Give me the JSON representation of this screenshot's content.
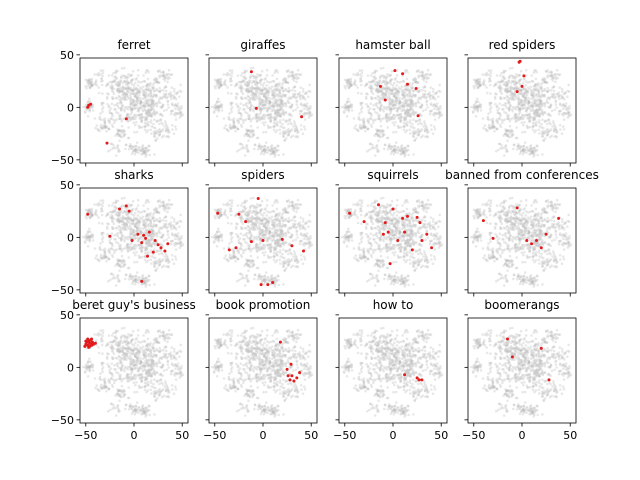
{
  "chart_data": {
    "type": "scatter",
    "layout": {
      "rows": 3,
      "cols": 4
    },
    "shared_axes": true,
    "xlim": [
      -56,
      56
    ],
    "ylim": [
      -53,
      47
    ],
    "xticks": [
      -50,
      0,
      50
    ],
    "yticks": [
      50,
      0,
      -50
    ],
    "xtick_labels": [
      "−50",
      "0",
      "50"
    ],
    "ytick_labels": [
      "50",
      "0",
      "−50"
    ],
    "background_color": "#bdbdbd",
    "highlight_color": "#e31a1c",
    "grid": false,
    "panels": [
      {
        "title": "ferret",
        "points": [
          [
            -47,
            2
          ],
          [
            -45,
            3
          ],
          [
            -28,
            -34
          ],
          [
            -8,
            -11
          ],
          [
            -48,
            0
          ]
        ]
      },
      {
        "title": "giraffes",
        "points": [
          [
            -12,
            34
          ],
          [
            -7,
            -1
          ],
          [
            40,
            -9
          ]
        ]
      },
      {
        "title": "hamster ball",
        "points": [
          [
            -13,
            20
          ],
          [
            -8,
            7
          ],
          [
            2,
            35
          ],
          [
            10,
            32
          ],
          [
            24,
            18
          ],
          [
            26,
            -8
          ],
          [
            15,
            22
          ]
        ]
      },
      {
        "title": "red spiders",
        "points": [
          [
            -3,
            43
          ],
          [
            -2,
            44
          ],
          [
            2,
            30
          ],
          [
            0,
            20
          ],
          [
            -5,
            15
          ]
        ]
      },
      {
        "title": "sharks",
        "points": [
          [
            -48,
            22
          ],
          [
            -25,
            1
          ],
          [
            -15,
            27
          ],
          [
            -8,
            30
          ],
          [
            -5,
            25
          ],
          [
            -2,
            -3
          ],
          [
            4,
            3
          ],
          [
            8,
            -5
          ],
          [
            10,
            2
          ],
          [
            12,
            -1
          ],
          [
            14,
            -18
          ],
          [
            16,
            5
          ],
          [
            20,
            -14
          ],
          [
            25,
            -7
          ],
          [
            28,
            -10
          ],
          [
            32,
            -13
          ],
          [
            35,
            -6
          ],
          [
            8,
            -42
          ],
          [
            22,
            -3
          ]
        ]
      },
      {
        "title": "spiders",
        "points": [
          [
            -47,
            23
          ],
          [
            -35,
            -12
          ],
          [
            -28,
            -10
          ],
          [
            -25,
            22
          ],
          [
            -18,
            15
          ],
          [
            -12,
            -4
          ],
          [
            -5,
            37
          ],
          [
            5,
            -45
          ],
          [
            0,
            -3
          ],
          [
            10,
            -43
          ],
          [
            20,
            -2
          ],
          [
            30,
            -8
          ],
          [
            42,
            -13
          ],
          [
            -2,
            -45
          ]
        ]
      },
      {
        "title": "squirrels",
        "points": [
          [
            -45,
            23
          ],
          [
            -30,
            15
          ],
          [
            -15,
            31
          ],
          [
            -10,
            3
          ],
          [
            -8,
            14
          ],
          [
            -5,
            5
          ],
          [
            0,
            27
          ],
          [
            5,
            -3
          ],
          [
            10,
            18
          ],
          [
            12,
            5
          ],
          [
            15,
            20
          ],
          [
            20,
            -12
          ],
          [
            25,
            19
          ],
          [
            28,
            14
          ],
          [
            30,
            -3
          ],
          [
            35,
            3
          ],
          [
            40,
            -10
          ],
          [
            -3,
            -25
          ]
        ]
      },
      {
        "title": "banned from conferences",
        "points": [
          [
            -40,
            16
          ],
          [
            -30,
            -1
          ],
          [
            -5,
            28
          ],
          [
            5,
            -3
          ],
          [
            10,
            -6
          ],
          [
            15,
            -3
          ],
          [
            20,
            -10
          ],
          [
            25,
            3
          ],
          [
            38,
            18
          ]
        ]
      },
      {
        "title": "beret guy's business",
        "points": [
          [
            -50,
            22
          ],
          [
            -49,
            24
          ],
          [
            -48,
            21
          ],
          [
            -47,
            25
          ],
          [
            -46,
            23
          ],
          [
            -45,
            26
          ],
          [
            -44,
            21
          ],
          [
            -43,
            24
          ],
          [
            -48,
            27
          ],
          [
            -50,
            25
          ],
          [
            -46,
            20
          ],
          [
            -44,
            27
          ],
          [
            -42,
            22
          ],
          [
            -47,
            19
          ],
          [
            -45,
            23
          ],
          [
            -51,
            20
          ],
          [
            -40,
            23
          ]
        ]
      },
      {
        "title": "book promotion",
        "points": [
          [
            18,
            24
          ],
          [
            25,
            -2
          ],
          [
            26,
            -8
          ],
          [
            28,
            -12
          ],
          [
            30,
            -8
          ],
          [
            32,
            -13
          ],
          [
            35,
            -10
          ],
          [
            38,
            -5
          ],
          [
            29,
            3
          ]
        ]
      },
      {
        "title": "how to",
        "points": [
          [
            12,
            -7
          ],
          [
            25,
            -10
          ],
          [
            27,
            -12
          ],
          [
            30,
            -12
          ]
        ]
      },
      {
        "title": "boomerangs",
        "points": [
          [
            -15,
            27
          ],
          [
            -10,
            10
          ],
          [
            20,
            18
          ],
          [
            28,
            -12
          ]
        ]
      }
    ]
  }
}
